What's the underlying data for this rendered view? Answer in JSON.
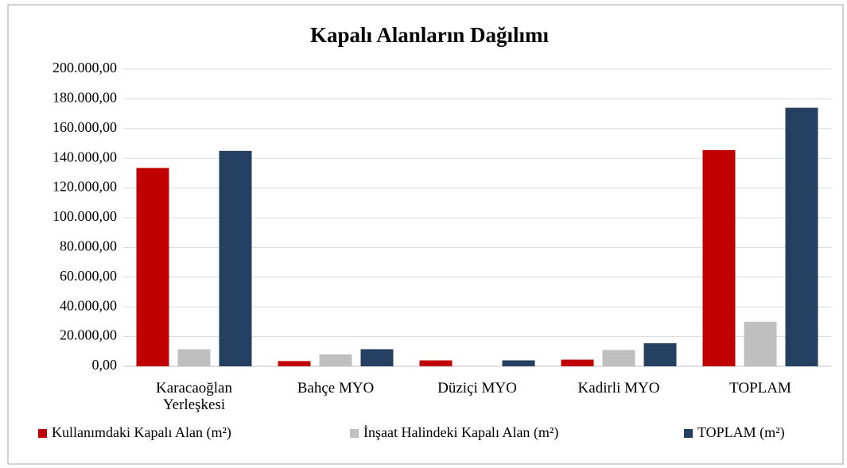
{
  "chart_data": {
    "type": "bar",
    "title": "Kapalı Alanların  Dağılımı",
    "categories": [
      "Karacaoğlan Yerleşkesi",
      "Bahçe MYO",
      "Düziçi MYO",
      "Kadirli MYO",
      "TOPLAM"
    ],
    "series": [
      {
        "name": "Kullanımdaki Kapalı Alan (m²)",
        "color": "#c00000",
        "values": [
          133500,
          3500,
          4000,
          4500,
          145500
        ]
      },
      {
        "name": "İnşaat Halindeki Kapalı Alan (m²)",
        "color": "#bfbfbf",
        "values": [
          11500,
          8000,
          0,
          11000,
          30000
        ]
      },
      {
        "name": "TOPLAM (m²)",
        "color": "#243f60",
        "values": [
          145000,
          11500,
          4000,
          15500,
          174000
        ]
      }
    ],
    "ylim": [
      0,
      200000
    ],
    "yticks": [
      {
        "value": 0,
        "label": "0,00"
      },
      {
        "value": 20000,
        "label": "20.000,00"
      },
      {
        "value": 40000,
        "label": "40.000,00"
      },
      {
        "value": 60000,
        "label": "60.000,00"
      },
      {
        "value": 80000,
        "label": "80.000,00"
      },
      {
        "value": 100000,
        "label": "100.000,00"
      },
      {
        "value": 120000,
        "label": "120.000,00"
      },
      {
        "value": 140000,
        "label": "140.000,00"
      },
      {
        "value": 160000,
        "label": "160.000,00"
      },
      {
        "value": 180000,
        "label": "180.000,00"
      },
      {
        "value": 200000,
        "label": "200.000,00"
      }
    ],
    "grid": true,
    "legend": "bottom"
  }
}
